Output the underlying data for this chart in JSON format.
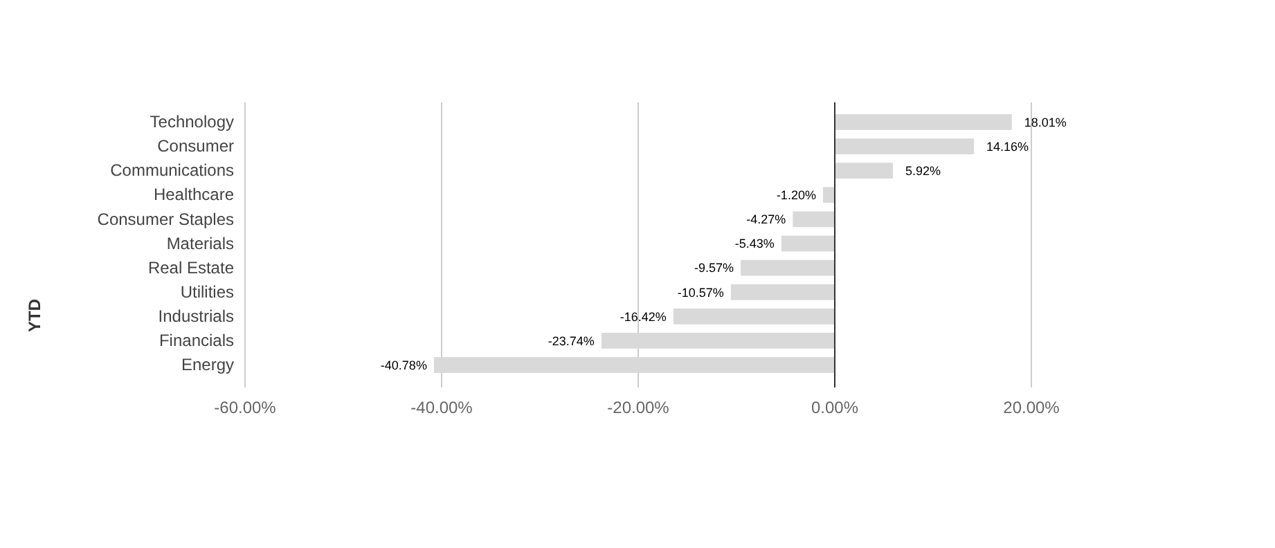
{
  "chart_data": {
    "type": "bar",
    "orientation": "horizontal",
    "ylabel": "YTD",
    "categories": [
      "Technology",
      "Consumer",
      "Communications",
      "Healthcare",
      "Consumer Staples",
      "Materials",
      "Real Estate",
      "Utilities",
      "Industrials",
      "Financials",
      "Energy"
    ],
    "values": [
      18.01,
      14.16,
      5.92,
      -1.2,
      -4.27,
      -5.43,
      -9.57,
      -10.57,
      -16.42,
      -23.74,
      -40.78
    ],
    "value_labels": [
      "18.01%",
      "14.16%",
      "5.92%",
      "-1.20%",
      "-4.27%",
      "-5.43%",
      "-9.57%",
      "-10.57%",
      "-16.42%",
      "-23.74%",
      "-40.78%"
    ],
    "color": "#d9d9d9",
    "xlim": [
      -60,
      20
    ],
    "xticks": [
      {
        "value": -60,
        "label": "-60.00%"
      },
      {
        "value": -40,
        "label": "-40.00%"
      },
      {
        "value": -20,
        "label": "-20.00%"
      },
      {
        "value": 0,
        "label": "0.00%"
      },
      {
        "value": 20,
        "label": "20.00%"
      }
    ],
    "grid": "x"
  }
}
